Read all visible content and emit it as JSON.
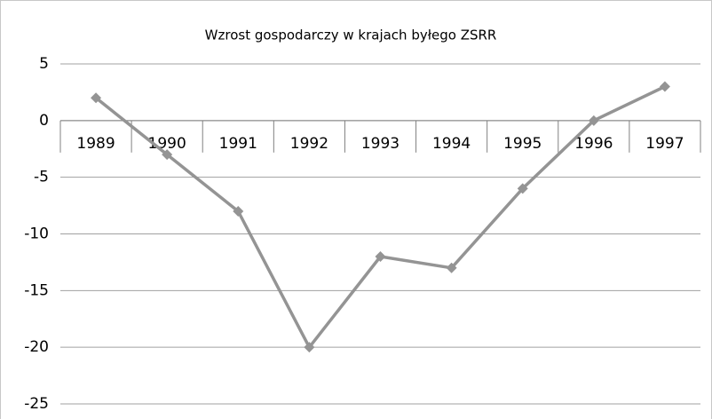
{
  "chart_data": {
    "type": "line",
    "title": "Wzrost gospodarczy w krajach byłego ZSRR",
    "categories": [
      "1989",
      "1990",
      "1991",
      "1992",
      "1993",
      "1994",
      "1995",
      "1996",
      "1997"
    ],
    "series": [
      {
        "name": "Wzrost gospodarczy",
        "color": "#949494",
        "values": [
          2,
          -3,
          -8,
          -20,
          -12,
          -13,
          -6,
          0,
          3
        ]
      }
    ],
    "ylim": [
      -25,
      5
    ],
    "yticks": [
      -25,
      -20,
      -15,
      -10,
      -5,
      0,
      5
    ],
    "grid": true
  }
}
